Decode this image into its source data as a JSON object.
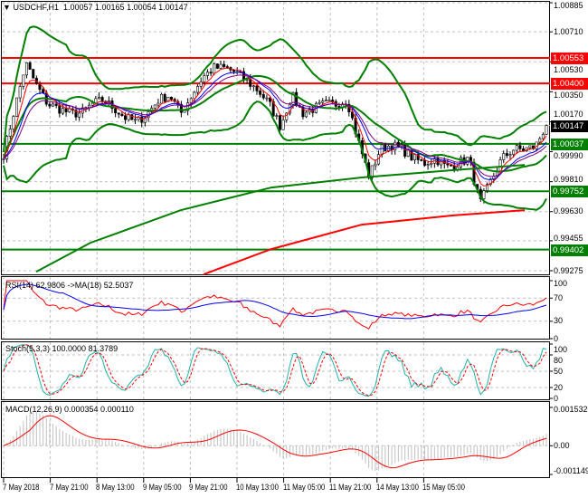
{
  "header": {
    "symbol": "USDCHF,H1",
    "open": "1.00057",
    "high": "1.00165",
    "low": "1.00054",
    "close": "1.00147"
  },
  "chart_data": [
    {
      "type": "candlestick",
      "title": "USDCHF,H1",
      "ylim": [
        0.99275,
        1.00885
      ],
      "y_ticks": [
        "1.00885",
        "1.00710",
        "1.00530",
        "1.00350",
        "1.00170",
        "0.99990",
        "0.99810",
        "0.99630",
        "0.99455",
        "0.99275"
      ],
      "x_ticks": [
        "7 May 2018",
        "7 May 21:00",
        "8 May 13:00",
        "9 May 05:00",
        "9 May 21:00",
        "10 May 13:00",
        "11 May 05:00",
        "11 May 21:00",
        "14 May 13:00",
        "15 May 05:00"
      ],
      "approx_closes": [
        0.99977,
        1.00249,
        1.0052,
        1.00385,
        1.00276,
        1.00249,
        1.00221,
        1.00221,
        1.00276,
        1.00303,
        1.00249,
        1.00194,
        1.00167,
        1.00221,
        1.00303,
        1.0033,
        1.00221,
        1.0033,
        1.00439,
        1.00493,
        1.00493,
        1.00466,
        1.00412,
        1.00357,
        1.00276,
        1.0014,
        1.0033,
        1.00221,
        1.00249,
        1.00276,
        1.00276,
        1.00303,
        1.00058,
        0.99841,
        1.00004,
        1.00031,
        1.00004,
        0.99949,
        0.99922,
        0.99949,
        0.99895,
        0.99922,
        0.99949,
        0.99677,
        0.99813,
        0.99949,
        1.00004,
        1.00004,
        1.0002,
        1.00151
      ],
      "horizontal_levels": [
        {
          "value": "1.00553",
          "color": "#ff0000"
        },
        {
          "value": "1.00400",
          "color": "#ff0000"
        },
        {
          "value": "1.00147",
          "color": "#000000"
        },
        {
          "value": "1.00037",
          "color": "#008000"
        },
        {
          "value": "0.99752",
          "color": "#008000"
        },
        {
          "value": "0.99402",
          "color": "#008000"
        }
      ],
      "ma_green": [
        0.99269,
        0.99443,
        0.99639,
        0.99775,
        0.99835,
        0.99879,
        0.99911
      ],
      "ma_red": [
        0.99253,
        0.99405,
        0.99552,
        0.99607,
        0.99639
      ]
    },
    {
      "type": "line",
      "title": "RSI(14) 62.9806  ->MA(18) 52.5037",
      "y_ticks": [
        "100",
        "70",
        "30",
        "0"
      ],
      "series_colors": [
        "#ff0000",
        "#0000ff"
      ]
    },
    {
      "type": "line",
      "title": "Stoch(5,3,3) 100.0000 81.3789",
      "y_ticks": [
        "100",
        "80",
        "50",
        "20",
        "0"
      ],
      "series_colors": [
        "#20b2aa",
        "#ff0000"
      ]
    },
    {
      "type": "bar",
      "title": "MACD(12,26,9) 0.000354 0.000110",
      "y_ticks": [
        "0.001532",
        "0.00",
        "-0.001149"
      ],
      "series_colors": [
        "#c0c0c0",
        "#ff0000"
      ]
    }
  ]
}
